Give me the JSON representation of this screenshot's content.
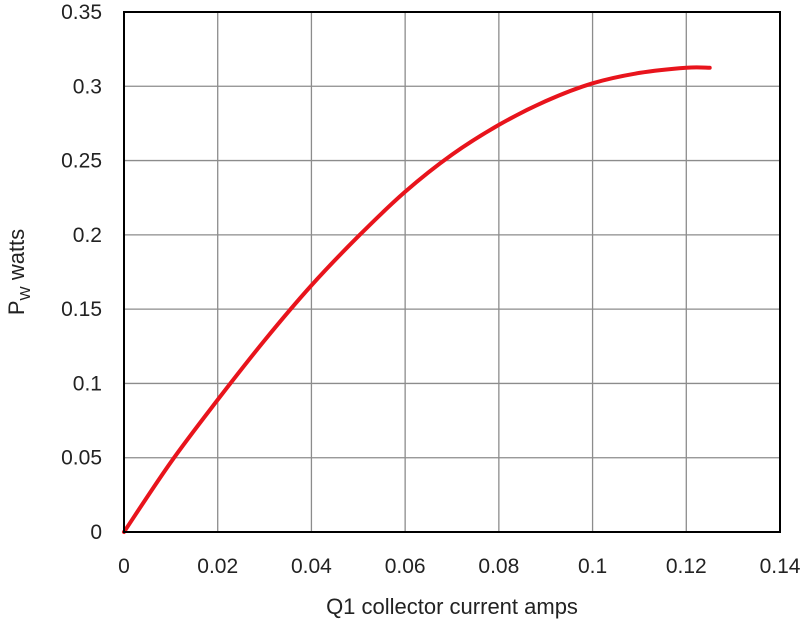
{
  "chart_data": {
    "type": "line",
    "title": "",
    "xlabel": "Q1 collector current amps",
    "ylabel": {
      "main": "P",
      "sub": "W",
      "rest": " watts"
    },
    "xlim": [
      0,
      0.14
    ],
    "ylim": [
      0,
      0.35
    ],
    "x_ticks": [
      0,
      0.02,
      0.04,
      0.06,
      0.08,
      0.1,
      0.12,
      0.14
    ],
    "x_tick_labels": [
      "0",
      "0.02",
      "0.04",
      "0.06",
      "0.08",
      "0.1",
      "0.12",
      "0.14"
    ],
    "y_ticks": [
      0,
      0.05,
      0.1,
      0.15,
      0.2,
      0.25,
      0.3,
      0.35
    ],
    "y_tick_labels": [
      "0",
      "0.05",
      "0.1",
      "0.15",
      "0.2",
      "0.25",
      "0.3",
      "0.35"
    ],
    "grid": true,
    "legend": "none",
    "series": [
      {
        "color": "#e8141c",
        "x": [
          0,
          0.01,
          0.02,
          0.03,
          0.04,
          0.05,
          0.06,
          0.07,
          0.08,
          0.09,
          0.1,
          0.11,
          0.12,
          0.125
        ],
        "y": [
          0,
          0.047,
          0.089,
          0.129,
          0.166,
          0.199,
          0.229,
          0.254,
          0.274,
          0.29,
          0.302,
          0.309,
          0.3125,
          0.3125
        ]
      }
    ]
  }
}
